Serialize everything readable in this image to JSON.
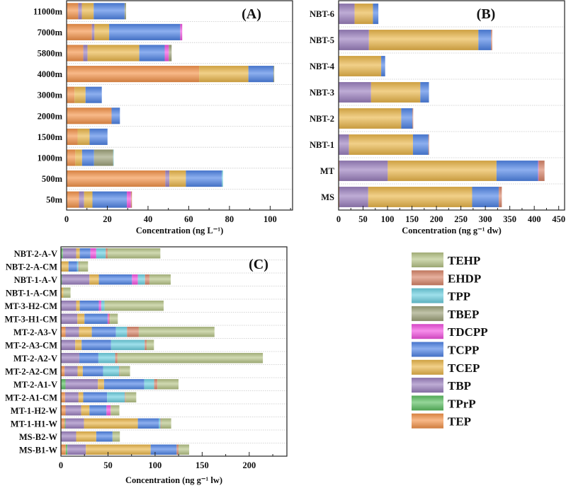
{
  "colors": {
    "TEP": "#f4934a",
    "TPrP": "#5cbf62",
    "TBP": "#9b80bf",
    "TCEP": "#eab64a",
    "TCPP": "#4f84e6",
    "TDCPP": "#f251e0",
    "TBEP": "#9ea27a",
    "TPP": "#6ccfe0",
    "EHDP": "#d8856a",
    "TEHP": "#b6c487"
  },
  "legend": {
    "items": [
      "TEHP",
      "EHDP",
      "TPP",
      "TBEP",
      "TDCPP",
      "TCPP",
      "TCEP",
      "TBP",
      "TPrP",
      "TEP"
    ]
  },
  "chart_data": [
    {
      "id": "A",
      "type": "bar",
      "orientation": "horizontal",
      "stacked": true,
      "title": "(A)",
      "xlabel": "Concentration (ng L⁻¹)",
      "xlim": [
        0,
        111
      ],
      "xticks": [
        0,
        20,
        40,
        60,
        80,
        100
      ],
      "grid": true,
      "categories": [
        "11000m",
        "7000m",
        "5800m",
        "4000m",
        "3000m",
        "2000m",
        "1500m",
        "1000m",
        "500m",
        "50m"
      ],
      "series": [
        {
          "name": "TEP",
          "values": [
            5.7,
            12.4,
            8.2,
            65.1,
            3.9,
            22.1,
            5.4,
            4.3,
            48.5,
            6.1
          ]
        },
        {
          "name": "TPrP",
          "values": [
            0,
            0,
            0,
            0,
            0,
            0,
            0,
            0,
            0,
            0
          ]
        },
        {
          "name": "TBP",
          "values": [
            1.8,
            1.3,
            2.1,
            0,
            0,
            0,
            0,
            0,
            2.0,
            2.5
          ]
        },
        {
          "name": "TCEP",
          "values": [
            5.8,
            7.2,
            25.4,
            24.2,
            5.4,
            0,
            5.9,
            3.3,
            8.1,
            4.1
          ]
        },
        {
          "name": "TCPP",
          "values": [
            15.2,
            34.9,
            12.5,
            12.3,
            8.0,
            4.1,
            8.8,
            5.9,
            17.7,
            16.9
          ]
        },
        {
          "name": "TDCPP",
          "values": [
            0,
            1.0,
            2.0,
            0,
            0,
            0,
            0,
            0,
            0,
            2.0
          ]
        },
        {
          "name": "TBEP",
          "values": [
            0.7,
            0,
            1.4,
            0.4,
            0,
            0,
            0,
            9.4,
            0,
            0
          ]
        },
        {
          "name": "TPP",
          "values": [
            0,
            0,
            0,
            0,
            0,
            0,
            0,
            0.2,
            0.5,
            0
          ]
        },
        {
          "name": "EHDP",
          "values": [
            0,
            0,
            0,
            0,
            0,
            0,
            0,
            0,
            0,
            0.5
          ]
        },
        {
          "name": "TEHP",
          "values": [
            0,
            0,
            0,
            0,
            0,
            0,
            0,
            0,
            0,
            0
          ]
        }
      ]
    },
    {
      "id": "B",
      "type": "bar",
      "orientation": "horizontal",
      "stacked": true,
      "title": "(B)",
      "xlabel": "Concentration (ng g⁻¹ dw)",
      "xlim": [
        0,
        462
      ],
      "xticks": [
        0,
        50,
        100,
        150,
        200,
        250,
        300,
        350,
        400,
        450
      ],
      "grid": true,
      "categories": [
        "NBT-6",
        "NBT-5",
        "NBT-4",
        "NBT-3",
        "NBT-2",
        "NBT-1",
        "MT",
        "MS"
      ],
      "series": [
        {
          "name": "TEP",
          "values": [
            0,
            0,
            0,
            0,
            0,
            0,
            1.5,
            1.5
          ]
        },
        {
          "name": "TPrP",
          "values": [
            0,
            0,
            0,
            0,
            0,
            0,
            0,
            0
          ]
        },
        {
          "name": "TBP",
          "values": [
            32.7,
            62.0,
            0,
            66.4,
            0,
            21.2,
            99.0,
            59.1
          ]
        },
        {
          "name": "TCEP",
          "values": [
            37.5,
            223.7,
            87.0,
            100.6,
            128.0,
            130.8,
            222.3,
            212.4
          ]
        },
        {
          "name": "TCPP",
          "values": [
            11.1,
            26.0,
            8.2,
            17.7,
            23.0,
            31.7,
            85.2,
            54.5
          ]
        },
        {
          "name": "TDCPP",
          "values": [
            0,
            0,
            0,
            0,
            0,
            0,
            1.0,
            0
          ]
        },
        {
          "name": "TBEP",
          "values": [
            0,
            0,
            0,
            0,
            0,
            0,
            0,
            0
          ]
        },
        {
          "name": "TPP",
          "values": [
            0,
            0,
            0,
            0,
            0,
            0,
            0,
            0
          ]
        },
        {
          "name": "EHDP",
          "values": [
            0,
            2.3,
            0,
            0,
            1.5,
            1.3,
            12.0,
            6.2
          ]
        },
        {
          "name": "TEHP",
          "values": [
            0,
            0,
            0,
            0,
            0,
            0,
            0,
            0
          ]
        }
      ]
    },
    {
      "id": "C",
      "type": "bar",
      "orientation": "horizontal",
      "stacked": true,
      "title": "(C)",
      "xlabel": "Concentration (ng g⁻¹ lw)",
      "xlim": [
        0,
        240
      ],
      "xticks": [
        0,
        50,
        100,
        150,
        200
      ],
      "grid": true,
      "categories": [
        "NBT-2-A-V",
        "NBT-2-A-CM",
        "NBT-1-A-V",
        "NBT-1-A-CM",
        "MT-3-H2-CM",
        "MT-3-H1-CM",
        "MT-2-A3-V",
        "MT-2-A3-CM",
        "MT-2-A2-V",
        "MT-2-A2-CM",
        "MT-2-A1-V",
        "MT-2-A1-CM",
        "MT-1-H2-W",
        "MT-1-H1-W",
        "MS-B2-W",
        "MS-B1-W"
      ],
      "series": [
        {
          "name": "TEP",
          "values": [
            0,
            0,
            0,
            0,
            0,
            0,
            4.9,
            0,
            0,
            3.9,
            0,
            4.4,
            4.9,
            4.1,
            0,
            5.1
          ]
        },
        {
          "name": "TPrP",
          "values": [
            2.1,
            0,
            1.1,
            0,
            0,
            0,
            0,
            0,
            0,
            0,
            4.9,
            0,
            0,
            0.8,
            0,
            1.8
          ]
        },
        {
          "name": "TBP",
          "values": [
            14.1,
            0,
            29.2,
            0,
            16.2,
            17.5,
            14.3,
            15.2,
            19.5,
            13.8,
            34.4,
            14.3,
            16.6,
            19.6,
            16.2,
            19.6
          ]
        },
        {
          "name": "TCEP",
          "values": [
            3.8,
            8.1,
            10.0,
            2.6,
            3.8,
            7.5,
            13.6,
            6.8,
            0,
            5.5,
            6.5,
            5.0,
            8.8,
            57.2,
            21.3,
            68.8
          ]
        },
        {
          "name": "TCPP",
          "values": [
            11.3,
            9.1,
            35.2,
            0,
            20.3,
            24.6,
            25.6,
            31.3,
            20.3,
            21.6,
            42.7,
            25.4,
            18.1,
            22.4,
            17.3,
            27.6
          ]
        },
        {
          "name": "TDCPP",
          "values": [
            6.2,
            0,
            6.2,
            0,
            2.5,
            1.2,
            0,
            0,
            0,
            0,
            0,
            0,
            4.5,
            0,
            0,
            0
          ]
        },
        {
          "name": "TBEP",
          "values": [
            0,
            0,
            0,
            0,
            0,
            0,
            0,
            0,
            0,
            0,
            0,
            0,
            0,
            0,
            0,
            0
          ]
        },
        {
          "name": "TPP",
          "values": [
            10.1,
            1.5,
            7.6,
            0,
            3.5,
            0,
            11.8,
            35.7,
            17.8,
            17.1,
            10.5,
            18.8,
            0,
            1.7,
            0,
            0
          ]
        },
        {
          "name": "EHDP",
          "values": [
            2.0,
            0.8,
            4.7,
            0,
            0,
            1.3,
            12.5,
            2.0,
            2.5,
            0.8,
            3.5,
            0.8,
            0,
            0.8,
            0,
            2.0
          ]
        },
        {
          "name": "TEHP",
          "values": [
            56.0,
            9.3,
            22.6,
            7.6,
            62.8,
            8.3,
            80.4,
            7.8,
            154.4,
            10.7,
            22.4,
            11.3,
            9.2,
            10.5,
            7.8,
            11.3
          ]
        }
      ]
    }
  ]
}
